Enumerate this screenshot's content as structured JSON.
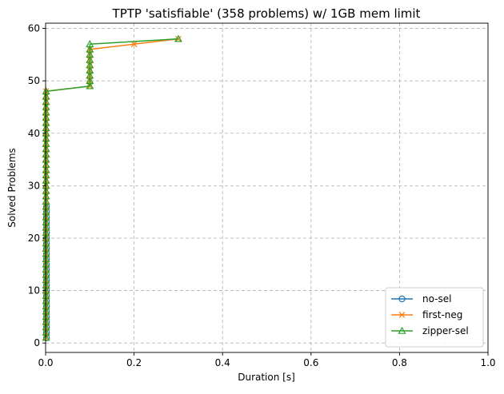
{
  "chart_data": {
    "type": "line",
    "title": "TPTP 'satisfiable' (358 problems) w/ 1GB mem limit",
    "xlabel": "Duration [s]",
    "ylabel": "Solved Problems",
    "xlim": [
      0.0,
      1.0
    ],
    "ylim": [
      -1.8,
      61.0
    ],
    "xticks": [
      0.0,
      0.2,
      0.4,
      0.6,
      0.8,
      1.0
    ],
    "xtick_labels": [
      "0.0",
      "0.2",
      "0.4",
      "0.6",
      "0.8",
      "1.0"
    ],
    "yticks": [
      0,
      10,
      20,
      30,
      40,
      50,
      60
    ],
    "ytick_labels": [
      "0",
      "10",
      "20",
      "30",
      "40",
      "50",
      "60"
    ],
    "grid": true,
    "legend_position": "lower-right",
    "series": [
      {
        "name": "no-sel",
        "color": "#1f77b4",
        "marker": "circle",
        "x": [
          0.002,
          0.002,
          0.002,
          0.002,
          0.002,
          0.002,
          0.002,
          0.002,
          0.002,
          0.002,
          0.002,
          0.002,
          0.002,
          0.002,
          0.002,
          0.002,
          0.002,
          0.002,
          0.002,
          0.002,
          0.002,
          0.002,
          0.002,
          0.002,
          0.002,
          0.002
        ],
        "y": [
          1,
          2,
          3,
          4,
          5,
          6,
          7,
          8,
          9,
          10,
          11,
          12,
          13,
          14,
          15,
          16,
          17,
          18,
          19,
          20,
          21,
          22,
          23,
          24,
          25,
          26
        ]
      },
      {
        "name": "first-neg",
        "color": "#ff7f0e",
        "marker": "x",
        "x": [
          0.001,
          0.001,
          0.001,
          0.001,
          0.001,
          0.001,
          0.001,
          0.001,
          0.001,
          0.001,
          0.001,
          0.001,
          0.001,
          0.001,
          0.001,
          0.001,
          0.001,
          0.001,
          0.001,
          0.001,
          0.001,
          0.001,
          0.001,
          0.001,
          0.001,
          0.001,
          0.001,
          0.001,
          0.001,
          0.001,
          0.001,
          0.001,
          0.001,
          0.001,
          0.001,
          0.001,
          0.001,
          0.001,
          0.001,
          0.001,
          0.001,
          0.001,
          0.001,
          0.001,
          0.001,
          0.001,
          0.001,
          0.001,
          0.1,
          0.1,
          0.1,
          0.1,
          0.1,
          0.1,
          0.1,
          0.1,
          0.2,
          0.3
        ],
        "y": [
          1,
          2,
          3,
          4,
          5,
          6,
          7,
          8,
          9,
          10,
          11,
          12,
          13,
          14,
          15,
          16,
          17,
          18,
          19,
          20,
          21,
          22,
          23,
          24,
          25,
          26,
          27,
          28,
          29,
          30,
          31,
          32,
          33,
          34,
          35,
          36,
          37,
          38,
          39,
          40,
          41,
          42,
          43,
          44,
          45,
          46,
          47,
          48,
          49,
          50,
          51,
          52,
          53,
          54,
          55,
          56,
          57,
          58
        ]
      },
      {
        "name": "zipper-sel",
        "color": "#2ca02c",
        "marker": "triangle",
        "x": [
          0.001,
          0.001,
          0.001,
          0.001,
          0.001,
          0.001,
          0.001,
          0.001,
          0.001,
          0.001,
          0.001,
          0.001,
          0.001,
          0.001,
          0.001,
          0.001,
          0.001,
          0.001,
          0.001,
          0.001,
          0.001,
          0.001,
          0.001,
          0.001,
          0.001,
          0.001,
          0.001,
          0.001,
          0.001,
          0.001,
          0.001,
          0.001,
          0.001,
          0.001,
          0.001,
          0.001,
          0.001,
          0.001,
          0.001,
          0.001,
          0.001,
          0.001,
          0.001,
          0.001,
          0.001,
          0.001,
          0.001,
          0.001,
          0.1,
          0.1,
          0.1,
          0.1,
          0.1,
          0.1,
          0.1,
          0.1,
          0.1,
          0.3
        ],
        "y": [
          1,
          2,
          3,
          4,
          5,
          6,
          7,
          8,
          9,
          10,
          11,
          12,
          13,
          14,
          15,
          16,
          17,
          18,
          19,
          20,
          21,
          22,
          23,
          24,
          25,
          26,
          27,
          28,
          29,
          30,
          31,
          32,
          33,
          34,
          35,
          36,
          37,
          38,
          39,
          40,
          41,
          42,
          43,
          44,
          45,
          46,
          47,
          48,
          49,
          50,
          51,
          52,
          53,
          54,
          55,
          56,
          57,
          58
        ]
      }
    ]
  }
}
